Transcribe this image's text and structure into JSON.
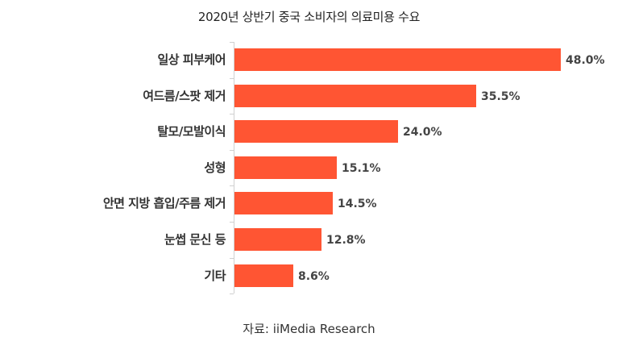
{
  "chart_data": {
    "type": "bar",
    "orientation": "horizontal",
    "title": "2020년 상반기 중국 소비자의 의료미용 수요",
    "categories": [
      "일상 피부케어",
      "여드름/스팟 제거",
      "탈모/모발이식",
      "성형",
      "안면 지방 흡입/주름 제거",
      "눈썹 문신 등",
      "기타"
    ],
    "values": [
      48.0,
      35.5,
      24.0,
      15.1,
      14.5,
      12.8,
      8.6
    ],
    "value_labels": [
      "48.0%",
      "35.5%",
      "24.0%",
      "15.1%",
      "14.5%",
      "12.8%",
      "8.6%"
    ],
    "unit": "%",
    "xlabel": "",
    "ylabel": "",
    "grid": false,
    "legend": null,
    "bar_color": "#FF5533",
    "source": "자료: iiMedia Research"
  }
}
